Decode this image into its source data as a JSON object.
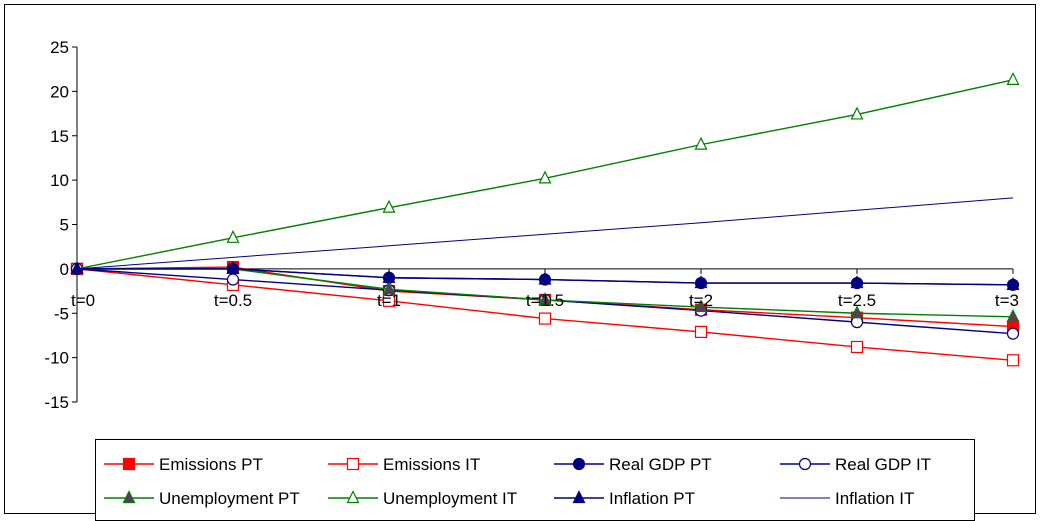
{
  "chart_data": {
    "type": "line",
    "categories": [
      "t=0",
      "t=0.5",
      "t=1",
      "t=1.5",
      "t=2",
      "t=2.5",
      "t=3"
    ],
    "ylim": [
      -15,
      25
    ],
    "yticks": [
      -15,
      -10,
      -5,
      0,
      5,
      10,
      15,
      20,
      25
    ],
    "ytick_labels": [
      "-15",
      "-10",
      "-5",
      "0",
      "5",
      "10",
      "15",
      "20",
      "25"
    ],
    "grid": false,
    "legend_position": "bottom",
    "series": [
      {
        "name": "Emissions PT",
        "color": "#ff0000",
        "marker": "square-filled",
        "values": [
          0,
          0.2,
          -2.5,
          -3.5,
          -4.6,
          -5.5,
          -6.5
        ]
      },
      {
        "name": "Emissions IT",
        "color": "#ff0000",
        "marker": "square-open",
        "values": [
          0,
          -1.8,
          -3.6,
          -5.6,
          -7.1,
          -8.8,
          -10.3
        ]
      },
      {
        "name": "Real GDP PT",
        "color": "#000080",
        "marker": "circle-filled",
        "values": [
          0,
          0,
          -1,
          -1.2,
          -1.6,
          -1.6,
          -1.8
        ]
      },
      {
        "name": "Real GDP IT",
        "color": "#000080",
        "marker": "circle-open",
        "values": [
          0,
          -1.2,
          -2.4,
          -3.5,
          -4.7,
          -6.0,
          -7.3
        ]
      },
      {
        "name": "Unemployment PT",
        "color": "#008000",
        "marker": "triangle-filled",
        "marker_fill": "#663366",
        "values": [
          0,
          0,
          -2.3,
          -3.5,
          -4.3,
          -5.0,
          -5.4
        ]
      },
      {
        "name": "Unemployment IT",
        "color": "#008000",
        "marker": "triangle-open",
        "values": [
          0,
          3.5,
          6.9,
          10.2,
          14.0,
          17.4,
          21.3
        ]
      },
      {
        "name": "Inflation PT",
        "color": "#000080",
        "marker": "triangle-filled",
        "values": [
          0,
          0,
          -1,
          -1.2,
          -1.6,
          -1.6,
          -1.8
        ]
      },
      {
        "name": "Inflation IT",
        "color": "#000080",
        "marker": "none",
        "values": [
          0,
          1.3,
          2.6,
          3.9,
          5.2,
          6.6,
          8.0
        ]
      }
    ]
  }
}
